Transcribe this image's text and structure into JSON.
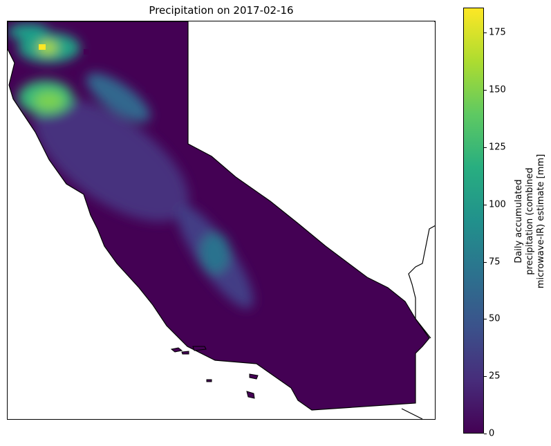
{
  "title": "Precipitation on 2017-02-16",
  "colorbar": {
    "label_lines": [
      "Daily accumulated",
      "precipitation (combined",
      "microwave-IR) estimate [mm]"
    ],
    "ticks": [
      "0",
      "25",
      "50",
      "75",
      "100",
      "125",
      "150",
      "175"
    ],
    "range": [
      0,
      186
    ],
    "colormap": "viridis"
  },
  "map": {
    "region": "California",
    "colors": {
      "low": "#440154",
      "mid": "#21918c",
      "high": "#fde725",
      "coast": "#000000"
    }
  }
}
